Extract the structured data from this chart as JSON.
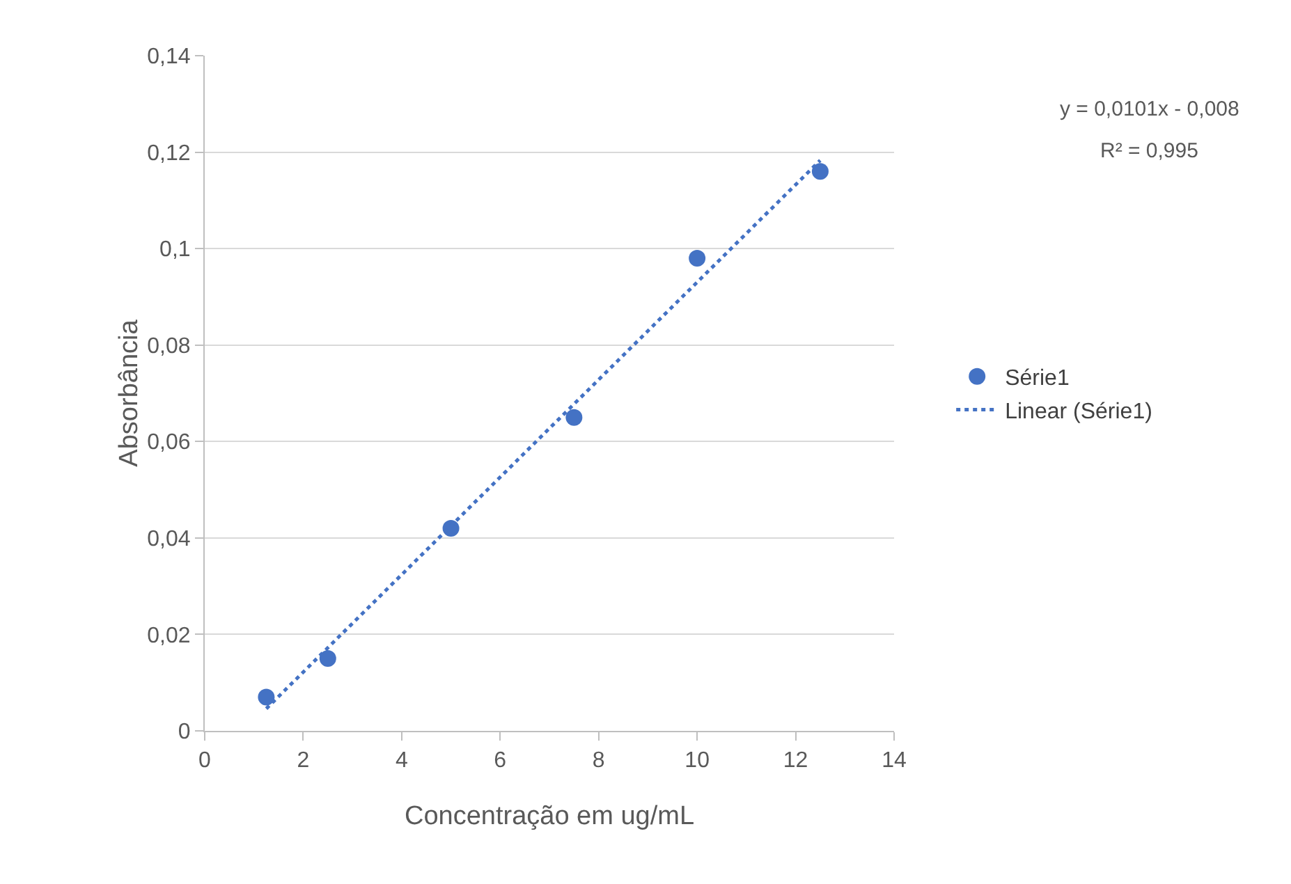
{
  "chart_data": {
    "type": "scatter",
    "xlabel": "Concentração em ug/mL",
    "ylabel": "Absorbância",
    "x": [
      1.25,
      2.5,
      5,
      7.5,
      10,
      12.5
    ],
    "series": [
      {
        "name": "Série1",
        "color": "#4472c4",
        "marker": "circle",
        "values": [
          0.007,
          0.015,
          0.042,
          0.065,
          0.098,
          0.116
        ]
      },
      {
        "name": "Linear (Série1)",
        "type": "line",
        "color": "#4472c4",
        "line_style": "dotted",
        "marker": "none",
        "x": [
          1.25,
          12.5
        ],
        "values": [
          0.0046,
          0.1183
        ]
      }
    ],
    "xlim": [
      0,
      14
    ],
    "xticks": [
      0,
      2,
      4,
      6,
      8,
      10,
      12,
      14
    ],
    "ylim": [
      0,
      0.14
    ],
    "yticks": [
      {
        "value": 0,
        "label": "0"
      },
      {
        "value": 0.02,
        "label": "0,02"
      },
      {
        "value": 0.04,
        "label": "0,04"
      },
      {
        "value": 0.06,
        "label": "0,06"
      },
      {
        "value": 0.08,
        "label": "0,08"
      },
      {
        "value": 0.1,
        "label": "0,1"
      },
      {
        "value": 0.12,
        "label": "0,12"
      },
      {
        "value": 0.14,
        "label": "0,14"
      }
    ],
    "grid": "y",
    "legend": "right",
    "annotations": [
      "y = 0,0101x - 0,008",
      "R² = 0,995"
    ]
  }
}
